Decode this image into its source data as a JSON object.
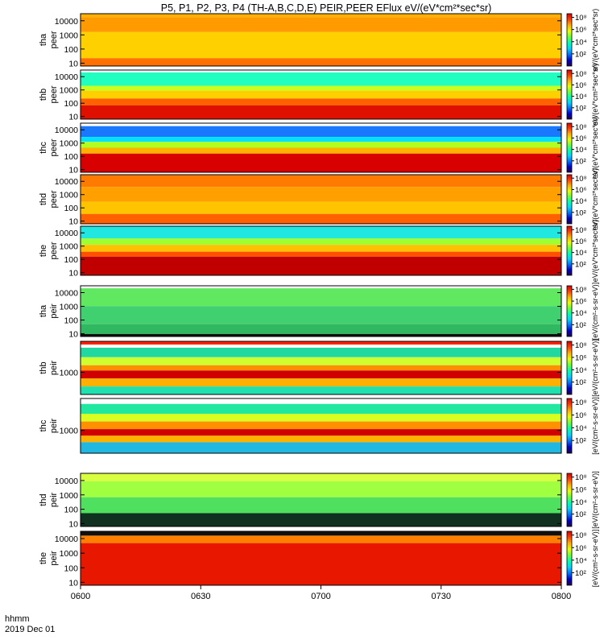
{
  "chart_data": {
    "type": "heatmap",
    "title": "P5, P1, P2, P3, P4 (TH-A,B,C,D,E) PEIR,PEER EFlux eV/(eV*cm²*sec*sr)",
    "time_axis": {
      "ticks": [
        "0600",
        "0630",
        "0700",
        "0730",
        "0800"
      ],
      "label_left": "hhmm",
      "date": "2019 Dec 01",
      "range": [
        "06:00",
        "08:00"
      ]
    },
    "colorbar": {
      "ticks": [
        "10²",
        "10⁴",
        "10⁶",
        "10⁸"
      ],
      "label_peer": "eV/(eV*cm²*sec*sr)",
      "label_peir": "[eV/(cm²-s-sr-eV)]",
      "label_bottom": "[eV/(cm²-s-sr-eV)]",
      "colors": [
        "#20004a",
        "#0000c8",
        "#0070ff",
        "#00d4ff",
        "#00ffb0",
        "#6cff3c",
        "#eaff00",
        "#ffb000",
        "#ff4000",
        "#d00000"
      ]
    },
    "panels": [
      {
        "probe": "tha",
        "species": "peer",
        "label_top": "tha",
        "label_bottom": "peer",
        "y_ticks": [
          "10",
          "100",
          "1000",
          "10000"
        ],
        "log_range": [
          0.8,
          4.5
        ]
      },
      {
        "probe": "thb",
        "species": "peer",
        "label_top": "thb",
        "label_bottom": "peer",
        "y_ticks": [
          "10",
          "100",
          "1000",
          "10000"
        ],
        "log_range": [
          0.8,
          4.5
        ]
      },
      {
        "probe": "thc",
        "species": "peer",
        "label_top": "thc",
        "label_bottom": "peer",
        "y_ticks": [
          "10",
          "100",
          "1000",
          "10000"
        ],
        "log_range": [
          0.8,
          4.5
        ]
      },
      {
        "probe": "thd",
        "species": "peer",
        "label_top": "thd",
        "label_bottom": "peer",
        "y_ticks": [
          "10",
          "100",
          "1000",
          "10000"
        ],
        "log_range": [
          0.8,
          4.5
        ]
      },
      {
        "probe": "the",
        "species": "peer",
        "label_top": "the",
        "label_bottom": "peer",
        "y_ticks": [
          "10",
          "100",
          "1000",
          "10000"
        ],
        "log_range": [
          0.8,
          4.5
        ]
      },
      {
        "probe": "tha",
        "species": "peir",
        "label_top": "tha",
        "label_bottom": "peir",
        "y_ticks": [
          "10",
          "100",
          "1000",
          "10000"
        ],
        "log_range": [
          0.8,
          4.5
        ]
      },
      {
        "probe": "thb",
        "species": "peir",
        "label_top": "thb",
        "label_bottom": "peir",
        "y_ticks": [
          "1000"
        ],
        "log_range": [
          2.5,
          3.7
        ]
      },
      {
        "probe": "thc",
        "species": "peir",
        "label_top": "thc",
        "label_bottom": "peir",
        "y_ticks": [
          "1000"
        ],
        "log_range": [
          2.5,
          3.7
        ]
      },
      {
        "probe": "thd",
        "species": "peir",
        "label_top": "thd",
        "label_bottom": "peir",
        "y_ticks": [
          "10",
          "100",
          "1000",
          "10000"
        ],
        "log_range": [
          0.8,
          4.5
        ]
      },
      {
        "probe": "the",
        "species": "peir",
        "label_top": "the",
        "label_bottom": "peir",
        "y_ticks": [
          "10",
          "100",
          "1000",
          "10000"
        ],
        "log_range": [
          0.8,
          4.5
        ]
      }
    ]
  }
}
